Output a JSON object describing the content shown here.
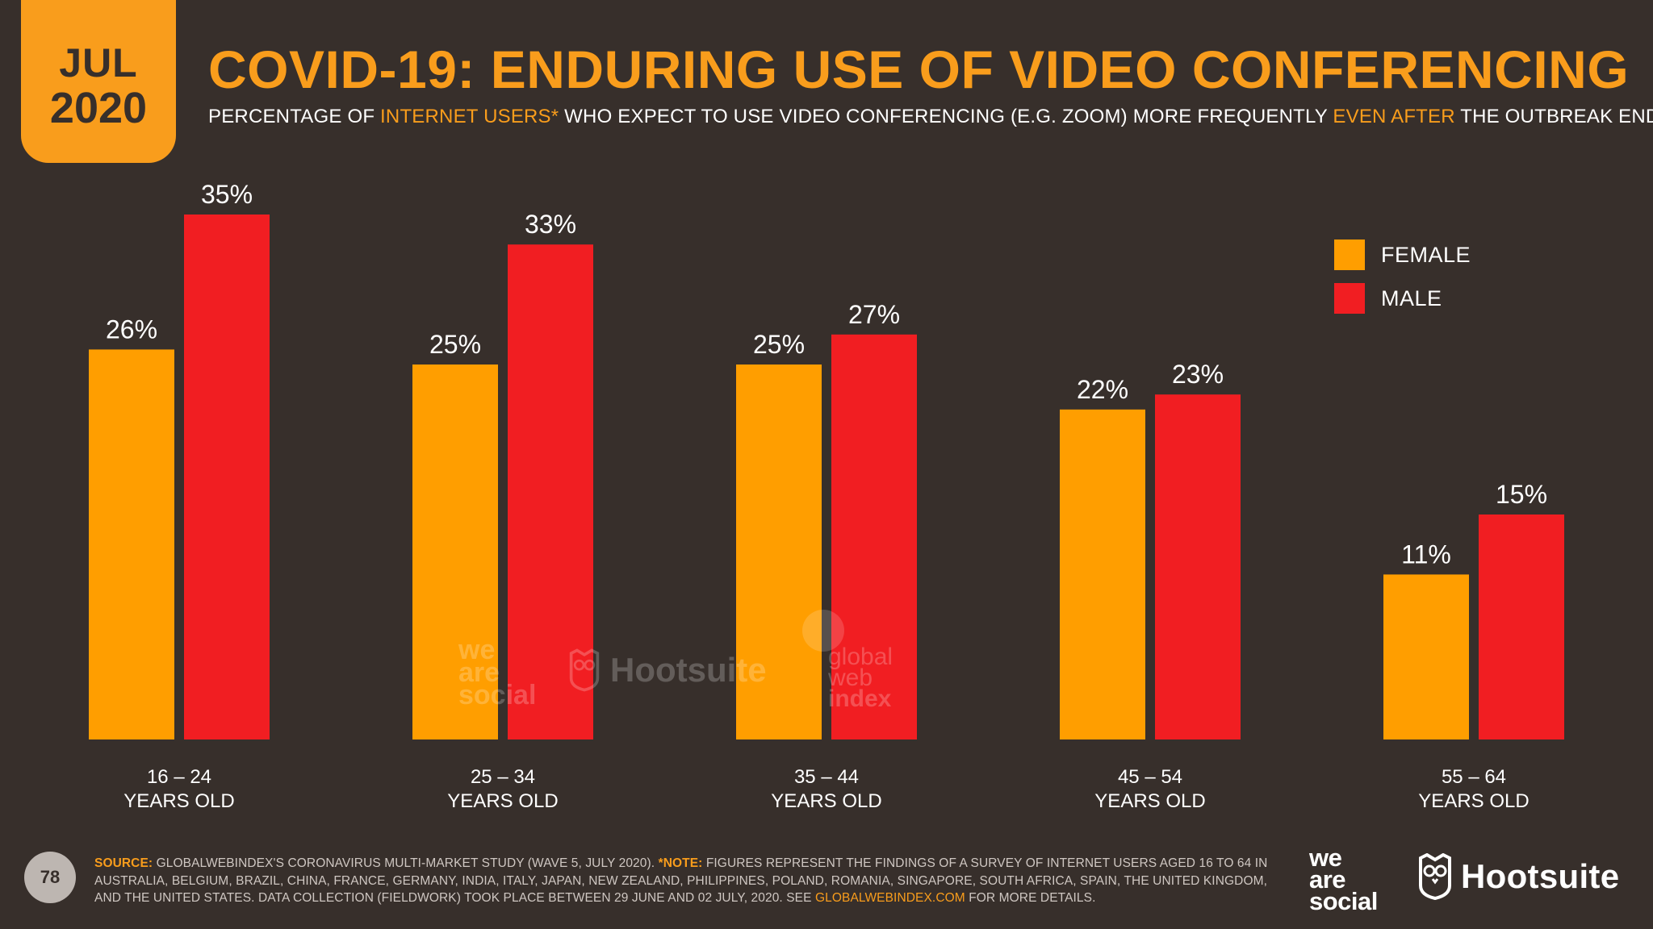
{
  "badge": {
    "month": "JUL",
    "year": "2020"
  },
  "title": "COVID-19: ENDURING USE OF VIDEO CONFERENCING",
  "subtitle": {
    "p1": "PERCENTAGE OF ",
    "h1": "INTERNET USERS*",
    "p2": " WHO EXPECT TO USE VIDEO CONFERENCING (E.G. ZOOM) MORE FREQUENTLY ",
    "h2": "EVEN AFTER",
    "p3": " THE OUTBREAK ENDS"
  },
  "colors": {
    "background": "#372f2b",
    "accent": "#f99d1c",
    "female": "#ff9e00",
    "male": "#f11e22"
  },
  "chart_data": {
    "type": "bar",
    "categories": [
      [
        "16 – 24",
        "YEARS OLD"
      ],
      [
        "25 – 34",
        "YEARS OLD"
      ],
      [
        "35 – 44",
        "YEARS OLD"
      ],
      [
        "45 – 54",
        "YEARS OLD"
      ],
      [
        "55 – 64",
        "YEARS OLD"
      ]
    ],
    "series": [
      {
        "name": "FEMALE",
        "color": "#ff9e00",
        "values": [
          26,
          25,
          25,
          22,
          11
        ],
        "labels": [
          "26%",
          "25%",
          "25%",
          "22%",
          "11%"
        ]
      },
      {
        "name": "MALE",
        "color": "#f11e22",
        "values": [
          35,
          33,
          27,
          23,
          15
        ],
        "labels": [
          "35%",
          "33%",
          "27%",
          "23%",
          "15%"
        ]
      }
    ],
    "value_unit": "%",
    "grid": false,
    "legend_position": "top-right"
  },
  "footer": {
    "source_key": "SOURCE:",
    "source_text": " GLOBALWEBINDEX'S CORONAVIRUS MULTI-MARKET STUDY (WAVE 5, JULY 2020). ",
    "note_key": "*NOTE:",
    "note_text": " FIGURES REPRESENT THE FINDINGS OF A SURVEY OF INTERNET USERS AGED 16 TO 64 IN AUSTRALIA, BELGIUM, BRAZIL, CHINA, FRANCE, GERMANY, INDIA, ITALY, JAPAN, NEW ZEALAND, PHILIPPINES, POLAND, ROMANIA, SINGAPORE, SOUTH AFRICA, SPAIN, THE UNITED KINGDOM, AND THE UNITED STATES. DATA COLLECTION (FIELDWORK) TOOK PLACE BETWEEN 29 JUNE AND 02 JULY, 2020. SEE ",
    "link": "GLOBALWEBINDEX.COM",
    "end": " FOR MORE DETAILS."
  },
  "page_number": "78",
  "logos": {
    "was": [
      "we",
      "are",
      "social"
    ],
    "hootsuite": "Hootsuite",
    "gwi": [
      "global",
      "web",
      "index"
    ]
  }
}
